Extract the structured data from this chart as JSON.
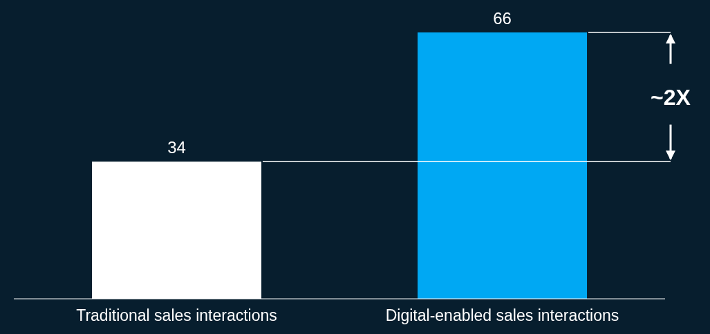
{
  "chart_data": {
    "type": "bar",
    "categories": [
      "Traditional sales interactions",
      "Digital-enabled sales interactions"
    ],
    "values": [
      34,
      66
    ],
    "colors": [
      "#ffffff",
      "#00a8f3"
    ],
    "data_labels": true,
    "grid": false,
    "legend": false,
    "ref_lines": [
      {
        "axis": "y",
        "value": 34,
        "color": "#ffffff"
      },
      {
        "axis": "y",
        "value": 66,
        "color": "#ffffff"
      }
    ],
    "annotations": [
      "~2X"
    ]
  }
}
